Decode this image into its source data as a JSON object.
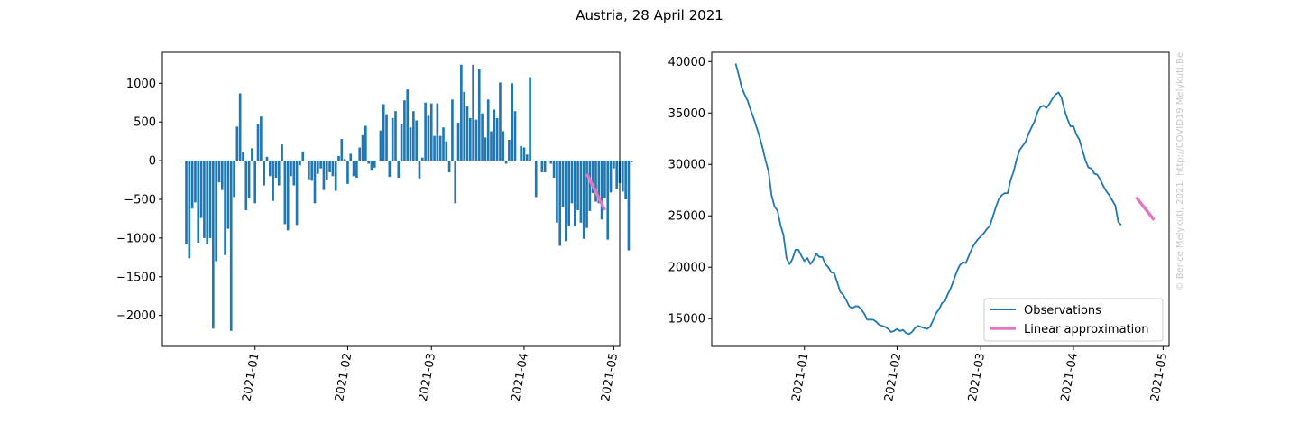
{
  "figure": {
    "title": "Austria, 28 April 2021",
    "watermark": "© Bence Melykuti, 2021. http://COVID19.Melykuti.Be"
  },
  "colors": {
    "observations": "#1f77b4",
    "approximation": "#e377c2"
  },
  "chart_data": [
    {
      "type": "bar",
      "x_start": "2020-12-09",
      "x_step_days": 1,
      "xlim": [
        "2020-12-01",
        "2021-05-03"
      ],
      "x_ticks": [
        "2021-01",
        "2021-02",
        "2021-03",
        "2021-04",
        "2021-05"
      ],
      "ylim": [
        -2400,
        1400
      ],
      "y_ticks": [
        1000,
        500,
        0,
        -500,
        -1000,
        -1500,
        -2000
      ],
      "y_tick_labels": [
        "1000",
        "500",
        "0",
        "−500",
        "−1000",
        "−1500",
        "−2000"
      ],
      "series": [
        {
          "values": [
            -1080,
            -1260,
            -620,
            -540,
            -1060,
            -740,
            -1000,
            -1080,
            -1000,
            -2170,
            -1300,
            -280,
            -380,
            -1220,
            -880,
            -2200,
            -470,
            440,
            870,
            110,
            -640,
            -490,
            160,
            -550,
            470,
            570,
            -320,
            50,
            -200,
            -520,
            -220,
            -320,
            210,
            -820,
            -900,
            -200,
            -320,
            -830,
            -60,
            120,
            0,
            -240,
            -260,
            -550,
            -170,
            -100,
            -380,
            -250,
            -150,
            -200,
            -390,
            60,
            280,
            20,
            -300,
            90,
            -200,
            -220,
            170,
            330,
            450,
            -40,
            -130,
            -90,
            0,
            390,
            730,
            600,
            -210,
            550,
            640,
            -220,
            480,
            780,
            920,
            430,
            640,
            520,
            -230,
            40,
            750,
            580,
            740,
            320,
            740,
            320,
            430,
            250,
            -150,
            790,
            -550,
            490,
            1240,
            890,
            700,
            550,
            1240,
            530,
            1180,
            610,
            300,
            790,
            380,
            660,
            550,
            1010,
            380,
            -40,
            270,
            1000,
            640,
            -10,
            190,
            170,
            80,
            1080,
            0,
            -470,
            0,
            -150,
            -150,
            -10,
            -40,
            -220,
            -800,
            -1100,
            -600,
            -1040,
            -840,
            -550,
            -850,
            -640,
            -800,
            -1010,
            -870,
            -650,
            -420,
            -530,
            -550,
            -760,
            -490,
            -1020,
            -410,
            -100,
            -360,
            -290,
            -400,
            -500,
            -1160,
            -20
          ]
        },
        {
          "name": "Linear approximation",
          "x": [
            "2021-04-22",
            "2021-04-28"
          ],
          "values": [
            -170,
            -640
          ]
        }
      ]
    },
    {
      "type": "line",
      "x_start": "2020-12-09",
      "x_step_days": 1,
      "xlim": [
        "2020-12-01",
        "2021-05-03"
      ],
      "x_ticks": [
        "2021-01",
        "2021-02",
        "2021-03",
        "2021-04",
        "2021-05"
      ],
      "ylim": [
        12300,
        40900
      ],
      "y_ticks": [
        40000,
        35000,
        30000,
        25000,
        20000,
        15000
      ],
      "y_tick_labels": [
        "40000",
        "35000",
        "30000",
        "25000",
        "20000",
        "15000"
      ],
      "legend_position": "lower-right",
      "series": [
        {
          "name": "Observations",
          "values": [
            39800,
            38700,
            37500,
            36800,
            36200,
            35300,
            34500,
            33600,
            32700,
            31600,
            30400,
            29300,
            27000,
            25900,
            25500,
            24100,
            23100,
            20900,
            20300,
            20800,
            21700,
            21700,
            21100,
            20600,
            20900,
            20300,
            20700,
            21300,
            21000,
            21000,
            20300,
            20000,
            19500,
            19400,
            18500,
            17600,
            17300,
            16800,
            16200,
            16000,
            16200,
            16200,
            15900,
            15500,
            14900,
            14900,
            14900,
            14700,
            14400,
            14300,
            14200,
            14000,
            13700,
            13800,
            14000,
            13800,
            13900,
            13600,
            13500,
            13700,
            14100,
            14300,
            14200,
            14100,
            14000,
            14200,
            14800,
            15500,
            15900,
            16500,
            16700,
            17400,
            18000,
            18800,
            19600,
            20200,
            20500,
            20400,
            21100,
            21800,
            22300,
            22700,
            23000,
            23300,
            23700,
            24000,
            24900,
            25800,
            26600,
            27000,
            27200,
            27200,
            28500,
            29300,
            30500,
            31400,
            31800,
            32200,
            33000,
            33600,
            34200,
            35100,
            35600,
            35700,
            35500,
            35900,
            36400,
            36800,
            37000,
            36500,
            35300,
            34400,
            33700,
            33700,
            32900,
            32400,
            31400,
            30400,
            29700,
            29600,
            29100,
            29000,
            28500,
            27900,
            27400,
            27000,
            26500,
            26000,
            24400,
            24100
          ]
        },
        {
          "name": "Linear approximation",
          "x": [
            "2021-04-22",
            "2021-04-28"
          ],
          "values": [
            26800,
            24600
          ]
        }
      ]
    }
  ]
}
